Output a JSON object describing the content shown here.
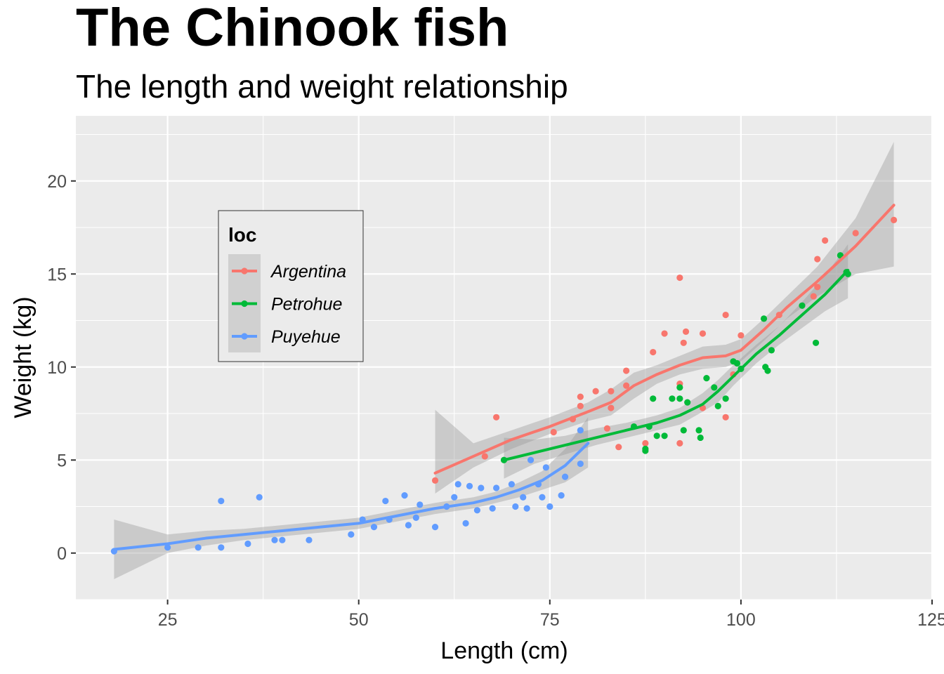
{
  "chart_data": {
    "type": "scatter",
    "title": "The Chinook fish",
    "subtitle": "The length and weight relationship",
    "xlabel": "Length (cm)",
    "ylabel": "Weight (kg)",
    "xlim": [
      13,
      125
    ],
    "ylim": [
      -2.5,
      23.5
    ],
    "x_ticks": [
      25,
      50,
      75,
      100,
      125
    ],
    "y_ticks": [
      0,
      5,
      10,
      15,
      20
    ],
    "x_tick_labels": [
      "25",
      "50",
      "75",
      "100",
      "125"
    ],
    "y_tick_labels": [
      "0",
      "5",
      "10",
      "15",
      "20"
    ],
    "grid": true,
    "legend": {
      "title": "loc",
      "placement": "left-inside"
    },
    "series": [
      {
        "name": "Argentina",
        "color": "#F8766D",
        "points": [
          [
            60,
            3.9
          ],
          [
            66.5,
            5.2
          ],
          [
            68,
            7.3
          ],
          [
            75.5,
            6.5
          ],
          [
            78,
            7.2
          ],
          [
            79,
            7.9
          ],
          [
            79,
            8.4
          ],
          [
            81,
            8.7
          ],
          [
            82.5,
            6.7
          ],
          [
            83,
            8.7
          ],
          [
            83,
            7.8
          ],
          [
            84,
            5.7
          ],
          [
            85,
            9.0
          ],
          [
            85,
            9.8
          ],
          [
            87.5,
            5.9
          ],
          [
            88.5,
            10.8
          ],
          [
            90,
            11.8
          ],
          [
            92,
            5.9
          ],
          [
            92,
            9.1
          ],
          [
            92,
            14.8
          ],
          [
            92.5,
            11.3
          ],
          [
            92.8,
            11.9
          ],
          [
            95,
            11.8
          ],
          [
            95,
            7.8
          ],
          [
            98,
            7.3
          ],
          [
            98,
            12.8
          ],
          [
            99,
            9.6
          ],
          [
            100,
            11.7
          ],
          [
            105,
            12.8
          ],
          [
            109.5,
            13.8
          ],
          [
            110,
            14.3
          ],
          [
            110,
            15.8
          ],
          [
            111,
            16.8
          ],
          [
            115,
            17.2
          ],
          [
            120,
            17.9
          ]
        ],
        "smooth": [
          [
            60,
            4.3
          ],
          [
            65,
            5.2
          ],
          [
            70,
            6.1
          ],
          [
            75,
            6.8
          ],
          [
            80,
            7.6
          ],
          [
            83,
            8.1
          ],
          [
            86,
            9.0
          ],
          [
            89,
            9.6
          ],
          [
            92,
            10.1
          ],
          [
            95,
            10.5
          ],
          [
            98,
            10.6
          ],
          [
            100,
            10.9
          ],
          [
            103,
            12.0
          ],
          [
            106,
            13.2
          ],
          [
            110,
            14.6
          ],
          [
            115,
            16.5
          ],
          [
            120,
            18.7
          ]
        ],
        "band": [
          [
            60,
            3.2,
            7.7
          ],
          [
            65,
            4.6,
            5.9
          ],
          [
            70,
            5.6,
            6.6
          ],
          [
            75,
            6.4,
            7.3
          ],
          [
            80,
            7.1,
            8.1
          ],
          [
            83,
            7.4,
            8.8
          ],
          [
            86,
            8.3,
            9.7
          ],
          [
            89,
            9.1,
            10.1
          ],
          [
            92,
            9.6,
            10.6
          ],
          [
            95,
            9.9,
            11.1
          ],
          [
            98,
            10.0,
            11.2
          ],
          [
            100,
            10.3,
            11.5
          ],
          [
            103,
            11.4,
            12.6
          ],
          [
            106,
            12.6,
            13.8
          ],
          [
            110,
            13.8,
            15.4
          ],
          [
            115,
            15.0,
            18.0
          ],
          [
            120,
            15.4,
            22.1
          ]
        ]
      },
      {
        "name": "Petrohue",
        "color": "#00BA38",
        "points": [
          [
            69,
            5.0
          ],
          [
            86,
            6.8
          ],
          [
            87.5,
            5.5
          ],
          [
            87.5,
            5.6
          ],
          [
            88,
            6.8
          ],
          [
            88.5,
            8.3
          ],
          [
            89,
            6.3
          ],
          [
            90,
            6.3
          ],
          [
            91,
            8.3
          ],
          [
            92,
            8.3
          ],
          [
            92,
            8.9
          ],
          [
            92.5,
            6.6
          ],
          [
            93,
            8.1
          ],
          [
            94.5,
            6.6
          ],
          [
            94.7,
            6.2
          ],
          [
            95.5,
            9.4
          ],
          [
            96.5,
            8.9
          ],
          [
            97,
            7.9
          ],
          [
            98,
            8.3
          ],
          [
            99,
            10.3
          ],
          [
            99.5,
            10.2
          ],
          [
            100,
            9.9
          ],
          [
            103,
            12.6
          ],
          [
            103.2,
            10.0
          ],
          [
            103.5,
            9.8
          ],
          [
            104,
            10.9
          ],
          [
            108,
            13.3
          ],
          [
            109.8,
            11.3
          ],
          [
            113,
            16.0
          ],
          [
            113.8,
            15.1
          ],
          [
            114,
            15.0
          ]
        ],
        "smooth": [
          [
            69,
            5.0
          ],
          [
            73,
            5.4
          ],
          [
            77,
            5.8
          ],
          [
            81,
            6.2
          ],
          [
            85,
            6.6
          ],
          [
            89,
            7.0
          ],
          [
            92,
            7.4
          ],
          [
            95,
            8.0
          ],
          [
            97,
            8.7
          ],
          [
            99,
            9.5
          ],
          [
            102,
            10.7
          ],
          [
            105,
            11.7
          ],
          [
            108,
            12.8
          ],
          [
            111,
            13.9
          ],
          [
            114,
            15.2
          ]
        ],
        "band": [
          [
            69,
            4.0,
            6.2
          ],
          [
            73,
            4.8,
            6.1
          ],
          [
            77,
            5.3,
            6.3
          ],
          [
            81,
            5.8,
            6.7
          ],
          [
            85,
            6.2,
            7.0
          ],
          [
            89,
            6.6,
            7.4
          ],
          [
            92,
            6.9,
            7.8
          ],
          [
            95,
            7.6,
            8.6
          ],
          [
            97,
            8.1,
            9.3
          ],
          [
            99,
            9.0,
            10.1
          ],
          [
            102,
            10.2,
            11.2
          ],
          [
            105,
            11.2,
            12.2
          ],
          [
            108,
            12.1,
            13.5
          ],
          [
            111,
            13.0,
            14.9
          ],
          [
            114,
            13.7,
            16.6
          ]
        ]
      },
      {
        "name": "Puyehue",
        "color": "#619CFF",
        "points": [
          [
            18,
            0.1
          ],
          [
            25,
            0.3
          ],
          [
            29,
            0.3
          ],
          [
            32,
            2.8
          ],
          [
            32,
            0.3
          ],
          [
            35.5,
            0.5
          ],
          [
            37,
            3.0
          ],
          [
            39,
            0.7
          ],
          [
            40,
            0.7
          ],
          [
            43.5,
            0.7
          ],
          [
            49,
            1.0
          ],
          [
            50.5,
            1.8
          ],
          [
            52,
            1.4
          ],
          [
            53.5,
            2.8
          ],
          [
            54,
            1.8
          ],
          [
            56,
            3.1
          ],
          [
            56.5,
            1.5
          ],
          [
            57.5,
            1.9
          ],
          [
            58,
            2.6
          ],
          [
            60,
            1.4
          ],
          [
            61.5,
            2.5
          ],
          [
            62.5,
            3.0
          ],
          [
            63,
            3.7
          ],
          [
            64,
            1.6
          ],
          [
            64.5,
            3.6
          ],
          [
            65.5,
            2.3
          ],
          [
            66,
            3.5
          ],
          [
            67.5,
            2.4
          ],
          [
            68,
            3.5
          ],
          [
            70,
            3.7
          ],
          [
            70.5,
            2.5
          ],
          [
            71.5,
            3.0
          ],
          [
            72,
            2.4
          ],
          [
            72.5,
            5.0
          ],
          [
            73.5,
            3.7
          ],
          [
            74,
            3.0
          ],
          [
            74.5,
            4.6
          ],
          [
            75,
            2.5
          ],
          [
            76.5,
            3.1
          ],
          [
            77,
            4.1
          ],
          [
            79,
            4.8
          ],
          [
            79,
            6.6
          ]
        ],
        "smooth": [
          [
            18,
            0.2
          ],
          [
            25,
            0.5
          ],
          [
            30,
            0.8
          ],
          [
            35,
            1.0
          ],
          [
            40,
            1.2
          ],
          [
            45,
            1.4
          ],
          [
            50,
            1.6
          ],
          [
            55,
            2.0
          ],
          [
            60,
            2.4
          ],
          [
            65,
            2.7
          ],
          [
            68,
            3.0
          ],
          [
            71,
            3.4
          ],
          [
            74,
            3.9
          ],
          [
            77,
            4.7
          ],
          [
            80,
            5.9
          ]
        ],
        "band": [
          [
            18,
            -1.4,
            1.8
          ],
          [
            25,
            0.0,
            1.0
          ],
          [
            30,
            0.4,
            1.2
          ],
          [
            35,
            0.7,
            1.3
          ],
          [
            40,
            0.9,
            1.5
          ],
          [
            45,
            1.1,
            1.7
          ],
          [
            50,
            1.3,
            1.9
          ],
          [
            55,
            1.7,
            2.3
          ],
          [
            60,
            2.1,
            2.7
          ],
          [
            65,
            2.4,
            3.0
          ],
          [
            68,
            2.7,
            3.3
          ],
          [
            71,
            3.0,
            3.8
          ],
          [
            74,
            3.4,
            4.4
          ],
          [
            77,
            3.8,
            5.6
          ],
          [
            80,
            4.6,
            7.3
          ]
        ]
      }
    ]
  }
}
